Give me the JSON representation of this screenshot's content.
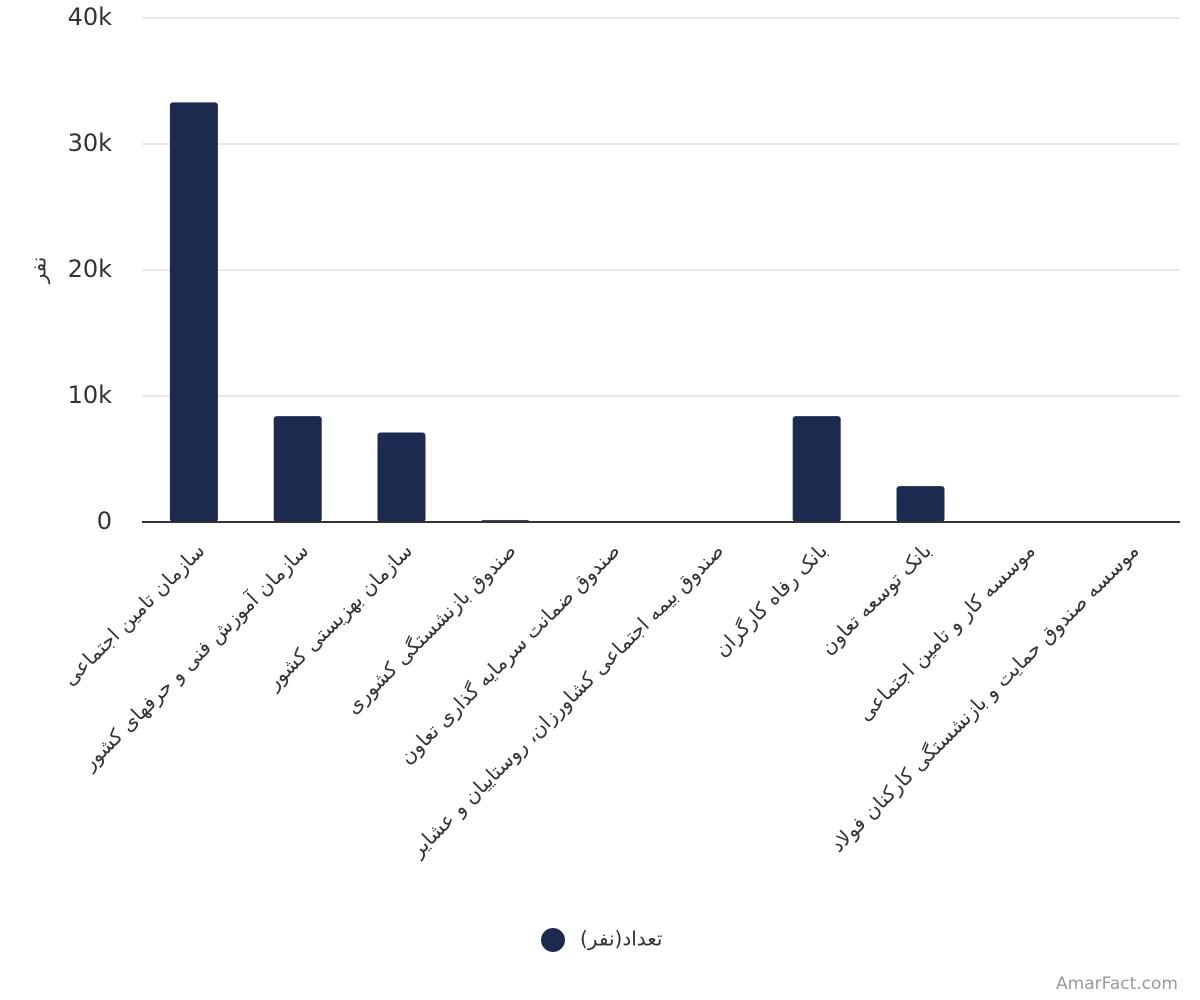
{
  "chart_data": {
    "type": "bar",
    "y_label": "نفر",
    "categories": [
      "سازمان تامین اجتماعی",
      "سازمان آموزش فنی و حرفهای کشور",
      "سازمان بهزیستی کشور",
      "صندوق بازنشستگی کشوری",
      "صندوق ضمانت سرمایه گذاری تعاون",
      "صندوق بیمه اجتماعی کشاورزان، روستاییان و عشایر",
      "بانک رفاه کارگران",
      "بانک توسعه تعاون",
      "موسسه کار و تامین اجتماعی",
      "موسسه صندوق حمایت و بازنشستگی کارکنان فولاد"
    ],
    "series": [
      {
        "name": "تعداد(نفر)",
        "color": "#1b2a4e",
        "values": [
          33300,
          8400,
          7100,
          150,
          0,
          0,
          8400,
          2850,
          0,
          0
        ]
      }
    ],
    "ylim": [
      0,
      40000
    ],
    "yticks": [
      0,
      {
        "value": 10000,
        "label": "10k"
      },
      {
        "value": 20000,
        "label": "20k"
      },
      {
        "value": 30000,
        "label": "30k"
      },
      {
        "value": 40000,
        "label": "40k"
      }
    ],
    "grid": true,
    "legend": "bottom",
    "credit": "AmarFact.com"
  }
}
